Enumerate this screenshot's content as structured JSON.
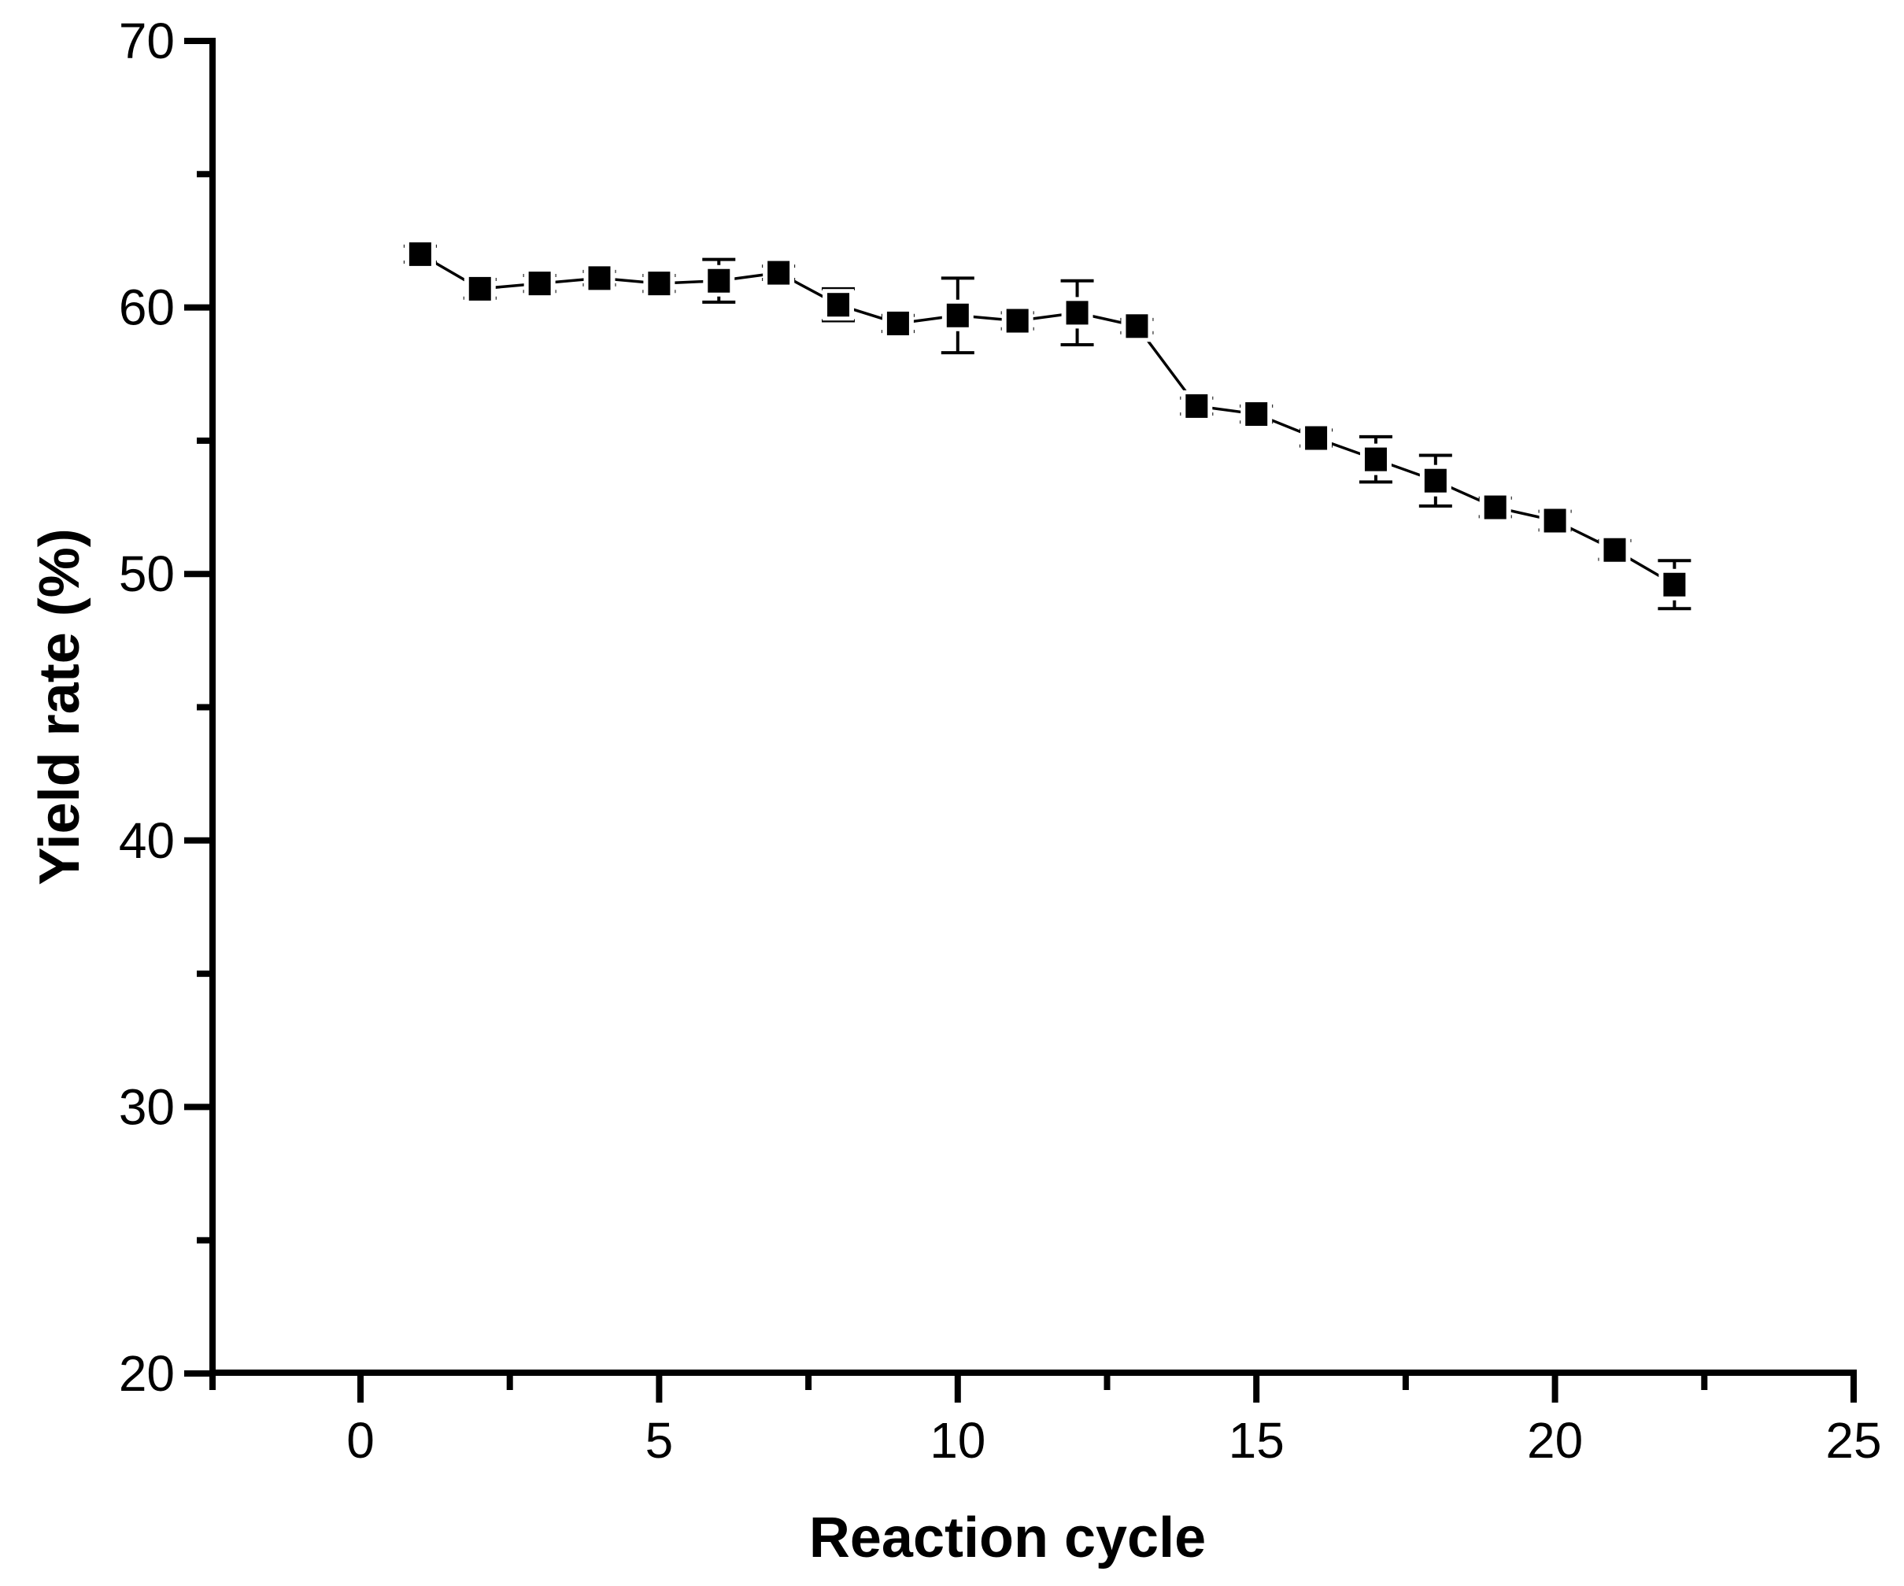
{
  "chart_data": {
    "type": "line",
    "title": "",
    "xlabel": "Reaction cycle",
    "ylabel": "Yield rate (%)",
    "xlim": [
      -2.5,
      25
    ],
    "ylim": [
      20,
      70
    ],
    "x_ticks": [
      0,
      5,
      10,
      15,
      20,
      25
    ],
    "x_minor_ticks": [
      2.5,
      7.5,
      12.5,
      17.5,
      22.5
    ],
    "y_ticks": [
      20,
      30,
      40,
      50,
      60,
      70
    ],
    "y_minor_ticks": [
      25,
      35,
      45,
      55,
      65
    ],
    "grid": false,
    "legend": "none",
    "marker": "filled-square",
    "colors": {
      "line": "#000000",
      "marker": "#000000",
      "text": "#000000",
      "background": "#ffffff"
    },
    "series": [
      {
        "name": "Yield rate",
        "x": [
          1,
          2,
          3,
          4,
          5,
          6,
          7,
          8,
          9,
          10,
          11,
          12,
          13,
          14,
          15,
          16,
          17,
          18,
          19,
          20,
          21,
          22
        ],
        "y": [
          62.0,
          60.7,
          60.9,
          61.1,
          60.9,
          61.0,
          61.3,
          60.1,
          59.4,
          59.7,
          59.5,
          59.8,
          59.3,
          56.3,
          56.0,
          55.1,
          54.3,
          53.5,
          52.5,
          52.0,
          50.9,
          49.6
        ],
        "yerr": [
          0.3,
          0.35,
          0.3,
          0.25,
          0.3,
          0.8,
          0.25,
          0.6,
          0.3,
          1.4,
          0.3,
          1.2,
          0.25,
          0.3,
          0.3,
          0.3,
          0.85,
          0.95,
          0.35,
          0.35,
          0.35,
          0.9
        ]
      }
    ]
  }
}
